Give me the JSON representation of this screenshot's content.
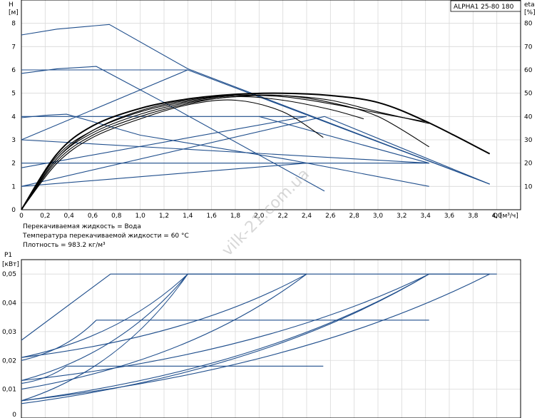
{
  "chart_data": [
    {
      "type": "line",
      "model": "ALPHA1 25-80 180",
      "xlabel": "Q [м³/ч]",
      "ylabel_left": [
        "H",
        "[м]"
      ],
      "ylabel_right": [
        "eta",
        "[%]"
      ],
      "xlim": [
        0,
        4.2
      ],
      "ylim": [
        0,
        9
      ],
      "ylim_right": [
        0,
        90
      ],
      "x_ticks": [
        "0",
        "0,2",
        "0,4",
        "0,6",
        "0,8",
        "1,0",
        "1,2",
        "1,4",
        "1,6",
        "1,8",
        "2,0",
        "2,2",
        "2,4",
        "2,6",
        "2,8",
        "3,0",
        "3,2",
        "3,4",
        "3,6",
        "3,8",
        "4,0"
      ],
      "y_ticks": [
        "0",
        "1",
        "2",
        "3",
        "4",
        "5",
        "6",
        "7",
        "8"
      ],
      "y_right_ticks": [
        "10",
        "20",
        "30",
        "40",
        "50",
        "60",
        "70",
        "80"
      ],
      "notes": [
        "Перекачиваемая жидкость = Вода",
        "Температура перекачиваемой жидкости = 60 °C",
        "Плотность = 983.2 кг/м³"
      ],
      "watermark": "vilk-21.com.ua",
      "series_pump_blue": [
        {
          "x": [
            0,
            0.3,
            0.74,
            1.4,
            3.94
          ],
          "y": [
            7.5,
            7.75,
            7.95,
            6.05,
            1.1
          ]
        },
        {
          "x": [
            0,
            0.3,
            0.63,
            1.2,
            2.55
          ],
          "y": [
            5.85,
            6.05,
            6.15,
            4.6,
            0.8
          ]
        },
        {
          "x": [
            0,
            0.2,
            0.38,
            1.0,
            2.25,
            3.43
          ],
          "y": [
            3.95,
            4.05,
            4.1,
            3.2,
            2.15,
            1.0
          ]
        },
        {
          "x": [
            0,
            1.4
          ],
          "y": [
            6.0,
            6.0
          ]
        },
        {
          "x": [
            1.4,
            3.94
          ],
          "y": [
            6.0,
            1.1
          ]
        },
        {
          "x": [
            0,
            2.4
          ],
          "y": [
            4.0,
            4.0
          ]
        },
        {
          "x": [
            0,
            3.43
          ],
          "y": [
            2.0,
            2.0
          ]
        },
        {
          "x": [
            0,
            3.43
          ],
          "y": [
            3.0,
            2.0
          ]
        },
        {
          "x": [
            0,
            2.4
          ],
          "y": [
            1.0,
            2.0
          ]
        },
        {
          "x": [
            0,
            1.4
          ],
          "y": [
            3.0,
            6.0
          ]
        },
        {
          "x": [
            0,
            2.4
          ],
          "y": [
            1.8,
            4.0
          ]
        },
        {
          "x": [
            2.0,
            3.43
          ],
          "y": [
            4.0,
            2.0
          ]
        },
        {
          "x": [
            0,
            2.55
          ],
          "y": [
            1.0,
            4.0
          ]
        },
        {
          "x": [
            2.55,
            3.94
          ],
          "y": [
            4.0,
            1.1
          ]
        }
      ],
      "series_eta_black": [
        {
          "x": [
            0,
            0.3,
            0.6,
            1.0,
            1.4,
            1.8,
            2.2,
            2.54
          ],
          "y": [
            0,
            20,
            31,
            39,
            45,
            47,
            42,
            31
          ]
        },
        {
          "x": [
            0,
            0.3,
            0.6,
            1.0,
            1.4,
            1.8,
            2.2,
            2.6,
            2.88
          ],
          "y": [
            0,
            21,
            32,
            40,
            45.5,
            48.5,
            47,
            43,
            39
          ]
        },
        {
          "x": [
            0,
            0.3,
            0.6,
            1.0,
            1.4,
            1.8,
            2.2,
            2.6,
            3.0,
            3.43
          ],
          "y": [
            0,
            22,
            33,
            41,
            46,
            48.5,
            49,
            46,
            40,
            27
          ]
        },
        {
          "x": [
            0,
            0.3,
            0.6,
            1.0,
            1.4,
            1.8,
            2.2,
            2.6,
            3.0,
            3.43
          ],
          "y": [
            0,
            23,
            34,
            42,
            46.5,
            49,
            49,
            47,
            42,
            37
          ]
        },
        {
          "x": [
            0,
            0.3,
            0.6,
            1.0,
            1.4,
            1.8,
            2.2,
            2.6,
            3.0,
            3.43
          ],
          "y": [
            0,
            22,
            34,
            42.5,
            47,
            49,
            48.5,
            45.5,
            41.5,
            37.5
          ]
        },
        {
          "x": [
            0,
            0.3,
            0.6,
            1.0,
            1.4,
            1.8,
            2.2,
            2.6,
            3.0,
            3.4,
            3.94
          ],
          "y": [
            0,
            24,
            36,
            43.5,
            47.5,
            49.5,
            50,
            49,
            46,
            38,
            24
          ]
        }
      ]
    },
    {
      "type": "line",
      "ylabel_left": [
        "P1",
        "[кВт]"
      ],
      "xlim": [
        0,
        4.2
      ],
      "ylim": [
        0,
        0.055
      ],
      "y_ticks": [
        "0",
        "0,01",
        "0,02",
        "0,03",
        "0,04",
        "0,05"
      ],
      "series_power_blue": [
        {
          "x": [
            0,
            0.75,
            4.0
          ],
          "y": [
            0.027,
            0.05,
            0.05
          ]
        },
        {
          "x": [
            0,
            1.4
          ],
          "y": [
            0.021,
            0.05
          ]
        },
        {
          "x": [
            0,
            1.4
          ],
          "y": [
            0.013,
            0.05
          ]
        },
        {
          "x": [
            0,
            1.4
          ],
          "y": [
            0.006,
            0.05
          ]
        },
        {
          "x": [
            1.4,
            2.4
          ],
          "y": [
            0.05,
            0.05
          ]
        },
        {
          "x": [
            0,
            2.4
          ],
          "y": [
            0.021,
            0.05
          ]
        },
        {
          "x": [
            0,
            2.4
          ],
          "y": [
            0.01,
            0.05
          ]
        },
        {
          "x": [
            0,
            3.43
          ],
          "y": [
            0.013,
            0.05
          ]
        },
        {
          "x": [
            0,
            3.43
          ],
          "y": [
            0.005,
            0.05
          ]
        },
        {
          "x": [
            0.63,
            3.43
          ],
          "y": [
            0.034,
            0.034
          ]
        },
        {
          "x": [
            0,
            0.63
          ],
          "y": [
            0.02,
            0.034
          ]
        },
        {
          "x": [
            0.38,
            2.54
          ],
          "y": [
            0.018,
            0.018
          ]
        },
        {
          "x": [
            0,
            0.38
          ],
          "y": [
            0.012,
            0.018
          ]
        },
        {
          "x": [
            0,
            3.43
          ],
          "y": [
            0.006,
            0.05
          ]
        },
        {
          "x": [
            0,
            3.94
          ],
          "y": [
            0.006,
            0.05
          ]
        },
        {
          "x": [
            3.43,
            3.94
          ],
          "y": [
            0.05,
            0.05
          ]
        }
      ]
    }
  ]
}
